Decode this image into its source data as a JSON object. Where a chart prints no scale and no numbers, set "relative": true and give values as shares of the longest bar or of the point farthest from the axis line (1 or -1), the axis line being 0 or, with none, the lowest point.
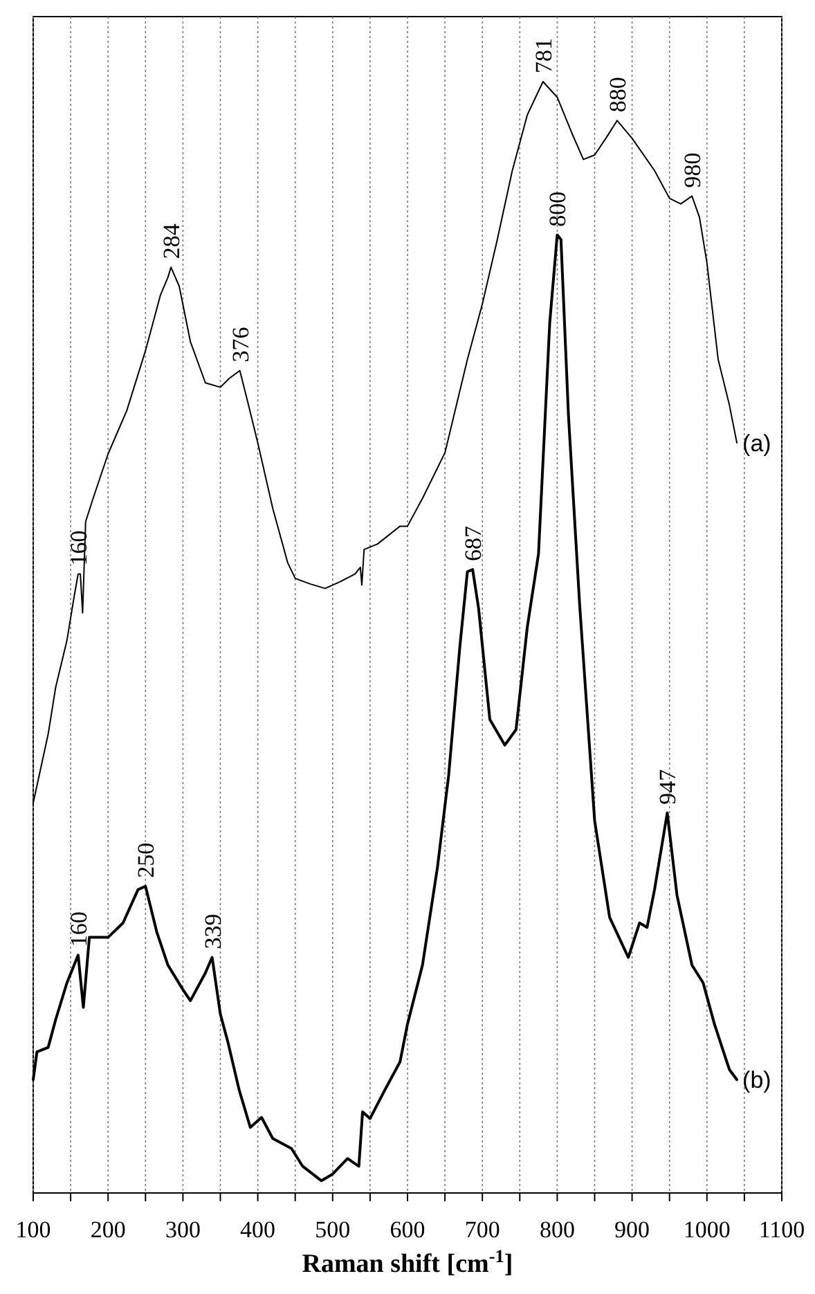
{
  "chart_data": {
    "type": "line",
    "relative": true,
    "xlabel": "Raman shift [cm$^{-1}$]",
    "xlim": [
      100,
      1100
    ],
    "xticks": [
      100,
      {
        "value": 150,
        "label": null
      },
      200,
      {
        "value": 250,
        "label": null
      },
      300,
      {
        "value": 350,
        "label": null
      },
      400,
      {
        "value": 450,
        "label": null
      },
      500,
      {
        "value": 550,
        "label": null
      },
      600,
      {
        "value": 650,
        "label": null
      },
      700,
      {
        "value": 750,
        "label": null
      },
      800,
      {
        "value": 850,
        "label": null
      },
      900,
      {
        "value": 950,
        "label": null
      },
      1000,
      {
        "value": 1050,
        "label": null
      },
      1100
    ],
    "grid": "x",
    "marker": "none",
    "line_style": "solid",
    "series": [
      {
        "name": "(a)",
        "color": "#000000",
        "x": [
          100,
          120,
          130,
          145,
          155,
          160,
          163,
          166,
          170,
          180,
          200,
          225,
          250,
          270,
          280,
          284,
          295,
          310,
          330,
          350,
          362,
          376,
          385,
          400,
          420,
          440,
          450,
          470,
          490,
          510,
          530,
          537,
          539,
          542,
          560,
          590,
          600,
          620,
          650,
          680,
          700,
          720,
          740,
          760,
          781,
          800,
          820,
          835,
          850,
          865,
          880,
          900,
          930,
          950,
          965,
          980,
          990,
          1000,
          1015,
          1030,
          1040
        ],
        "values": [
          0.351,
          0.413,
          0.455,
          0.497,
          0.538,
          0.557,
          0.557,
          0.522,
          0.604,
          0.625,
          0.665,
          0.704,
          0.758,
          0.808,
          0.824,
          0.833,
          0.816,
          0.766,
          0.729,
          0.725,
          0.733,
          0.74,
          0.716,
          0.675,
          0.616,
          0.567,
          0.553,
          0.548,
          0.544,
          0.55,
          0.557,
          0.563,
          0.547,
          0.579,
          0.584,
          0.6,
          0.6,
          0.625,
          0.666,
          0.75,
          0.8,
          0.858,
          0.92,
          0.97,
          1.0,
          0.986,
          0.953,
          0.93,
          0.934,
          0.949,
          0.965,
          0.949,
          0.92,
          0.895,
          0.89,
          0.897,
          0.878,
          0.837,
          0.75,
          0.709,
          0.675
        ]
      },
      {
        "name": "(b)",
        "color": "#000000",
        "x": [
          100,
          105,
          120,
          130,
          145,
          160,
          167,
          175,
          200,
          220,
          240,
          250,
          265,
          280,
          300,
          310,
          330,
          339,
          350,
          360,
          375,
          390,
          405,
          420,
          445,
          460,
          485,
          500,
          520,
          535,
          540,
          550,
          570,
          590,
          600,
          620,
          640,
          655,
          670,
          680,
          687,
          695,
          710,
          730,
          745,
          760,
          775,
          790,
          800,
          805,
          815,
          830,
          850,
          870,
          895,
          910,
          920,
          930,
          947,
          960,
          980,
          995,
          1010,
          1030,
          1040
        ],
        "values": [
          0.102,
          0.127,
          0.131,
          0.156,
          0.189,
          0.214,
          0.167,
          0.23,
          0.23,
          0.243,
          0.273,
          0.276,
          0.235,
          0.205,
          0.183,
          0.173,
          0.198,
          0.212,
          0.161,
          0.136,
          0.093,
          0.059,
          0.068,
          0.049,
          0.04,
          0.024,
          0.011,
          0.017,
          0.031,
          0.024,
          0.073,
          0.067,
          0.093,
          0.118,
          0.152,
          0.205,
          0.293,
          0.376,
          0.492,
          0.559,
          0.561,
          0.526,
          0.426,
          0.403,
          0.417,
          0.509,
          0.575,
          0.783,
          0.862,
          0.858,
          0.7,
          0.529,
          0.335,
          0.248,
          0.212,
          0.243,
          0.239,
          0.273,
          0.342,
          0.268,
          0.205,
          0.189,
          0.152,
          0.111,
          0.102
        ]
      }
    ],
    "annotations": [
      {
        "text": "160",
        "x": 160,
        "y": 0.557
      },
      {
        "text": "284",
        "x": 284,
        "y": 0.833
      },
      {
        "text": "376",
        "x": 376,
        "y": 0.74
      },
      {
        "text": "781",
        "x": 781,
        "y": 1.0
      },
      {
        "text": "880",
        "x": 880,
        "y": 0.965
      },
      {
        "text": "980",
        "x": 980,
        "y": 0.897
      },
      {
        "text": "160",
        "x": 160,
        "y": 0.214
      },
      {
        "text": "250",
        "x": 250,
        "y": 0.276
      },
      {
        "text": "339",
        "x": 339,
        "y": 0.212
      },
      {
        "text": "687",
        "x": 687,
        "y": 0.561
      },
      {
        "text": "800",
        "x": 800,
        "y": 0.862
      },
      {
        "text": "947",
        "x": 947,
        "y": 0.342
      }
    ]
  }
}
